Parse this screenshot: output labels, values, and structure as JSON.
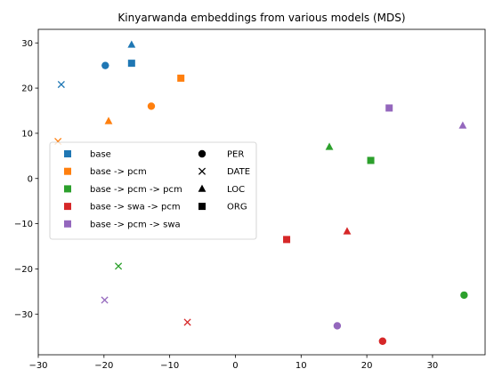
{
  "chart_data": {
    "type": "scatter",
    "title": "Kinyarwanda embeddings from various models (MDS)",
    "xlabel": "",
    "ylabel": "",
    "xlim": [
      -30,
      38
    ],
    "ylim": [
      -39,
      33
    ],
    "xticks": [
      -30,
      -20,
      -10,
      0,
      10,
      20,
      30
    ],
    "yticks": [
      -30,
      -20,
      -10,
      0,
      10,
      20,
      30
    ],
    "grid": false,
    "legend_placement": "center-left",
    "series": [
      {
        "name": "base",
        "color": "#1f77b4",
        "points": [
          {
            "x": -19.8,
            "y": 25.0,
            "marker": "PER"
          },
          {
            "x": -26.5,
            "y": 20.8,
            "marker": "DATE"
          },
          {
            "x": -15.8,
            "y": 29.6,
            "marker": "LOC"
          },
          {
            "x": -15.8,
            "y": 25.5,
            "marker": "ORG"
          }
        ]
      },
      {
        "name": "base -> pcm",
        "color": "#ff7f0e",
        "points": [
          {
            "x": -12.8,
            "y": 16.0,
            "marker": "PER"
          },
          {
            "x": -27.0,
            "y": 8.2,
            "marker": "DATE"
          },
          {
            "x": -19.3,
            "y": 12.7,
            "marker": "LOC"
          },
          {
            "x": -8.3,
            "y": 22.2,
            "marker": "ORG"
          }
        ]
      },
      {
        "name": "base -> pcm -> pcm",
        "color": "#2ca02c",
        "points": [
          {
            "x": 34.8,
            "y": -25.8,
            "marker": "PER"
          },
          {
            "x": -17.8,
            "y": -19.4,
            "marker": "DATE"
          },
          {
            "x": 14.3,
            "y": 7.0,
            "marker": "LOC"
          },
          {
            "x": 20.6,
            "y": 4.0,
            "marker": "ORG"
          }
        ]
      },
      {
        "name": "base -> swa -> pcm",
        "color": "#d62728",
        "points": [
          {
            "x": 22.4,
            "y": -36.0,
            "marker": "PER"
          },
          {
            "x": -7.3,
            "y": -31.8,
            "marker": "DATE"
          },
          {
            "x": 17.0,
            "y": -11.7,
            "marker": "LOC"
          },
          {
            "x": 7.8,
            "y": -13.5,
            "marker": "ORG"
          }
        ]
      },
      {
        "name": "base -> pcm -> swa",
        "color": "#9467bd",
        "points": [
          {
            "x": 15.5,
            "y": -32.6,
            "marker": "PER"
          },
          {
            "x": -19.9,
            "y": -26.9,
            "marker": "DATE"
          },
          {
            "x": 34.6,
            "y": 11.7,
            "marker": "LOC"
          },
          {
            "x": 23.4,
            "y": 15.6,
            "marker": "ORG"
          }
        ]
      }
    ],
    "legend": {
      "colors": [
        "base",
        "base -> pcm",
        "base -> pcm -> pcm",
        "base -> swa -> pcm",
        "base -> pcm -> swa"
      ],
      "markers": [
        {
          "label": "PER",
          "marker": "circle"
        },
        {
          "label": "DATE",
          "marker": "x"
        },
        {
          "label": "LOC",
          "marker": "triangle"
        },
        {
          "label": "ORG",
          "marker": "square"
        }
      ]
    }
  }
}
